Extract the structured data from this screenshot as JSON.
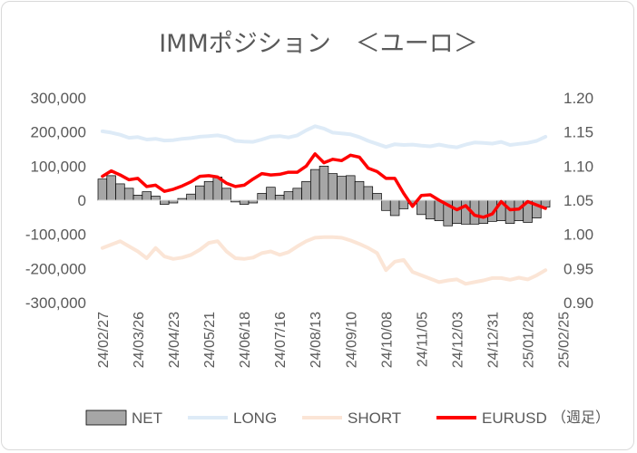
{
  "chart_data": {
    "type": "bar+line",
    "title": "IMMポジション　＜ユーロ＞",
    "x_tick_labels": [
      "24/02/27",
      "24/03/26",
      "24/04/23",
      "24/05/21",
      "24/06/18",
      "24/07/16",
      "24/08/13",
      "24/09/10",
      "24/10/08",
      "24/11/05",
      "24/12/03",
      "24/12/31",
      "25/01/28",
      "25/02/25"
    ],
    "x_note": "（週足）",
    "left_axis": {
      "ylim": [
        -300000,
        300000
      ],
      "ticks": [
        300000,
        200000,
        100000,
        0,
        -100000,
        -200000,
        -300000
      ],
      "tick_labels": [
        "300,000",
        "200,000",
        "100,000",
        "0",
        "-100,000",
        "-200,000",
        "-300,000"
      ]
    },
    "right_axis": {
      "ylim": [
        0.9,
        1.2
      ],
      "ticks": [
        1.2,
        1.15,
        1.1,
        1.05,
        1.0,
        0.95,
        0.9
      ],
      "tick_labels": [
        "1.20",
        "1.15",
        "1.10",
        "1.05",
        "1.00",
        "0.95",
        "0.90"
      ]
    },
    "legend_position": "bottom",
    "series": [
      {
        "name": "NET",
        "type": "bar",
        "axis": "left",
        "color": "#a6a6a6",
        "values": [
          62000,
          72000,
          48000,
          35000,
          15000,
          25000,
          12000,
          -12000,
          -8000,
          5000,
          18000,
          42000,
          55000,
          68000,
          35000,
          -5000,
          -12000,
          -8000,
          20000,
          38000,
          15000,
          25000,
          35000,
          55000,
          90000,
          100000,
          78000,
          70000,
          72000,
          55000,
          40000,
          20000,
          -30000,
          -45000,
          -25000,
          -10000,
          -42000,
          -55000,
          -60000,
          -75000,
          -68000,
          -70000,
          -70000,
          -68000,
          -62000,
          -60000,
          -68000,
          -60000,
          -65000,
          -52000,
          -20000
        ]
      },
      {
        "name": "LONG",
        "type": "line",
        "axis": "left",
        "color": "#deebf7",
        "values": [
          202000,
          198000,
          192000,
          183000,
          185000,
          178000,
          180000,
          175000,
          176000,
          180000,
          182000,
          186000,
          188000,
          190000,
          185000,
          174000,
          172000,
          171000,
          178000,
          186000,
          188000,
          184000,
          190000,
          205000,
          217000,
          210000,
          198000,
          196000,
          193000,
          185000,
          174000,
          165000,
          156000,
          164000,
          162000,
          163000,
          160000,
          158000,
          163000,
          158000,
          155000,
          163000,
          169000,
          168000,
          166000,
          171000,
          162000,
          165000,
          168000,
          174000,
          186000
        ]
      },
      {
        "name": "SHORT",
        "type": "line",
        "axis": "left",
        "color": "#fbe5d6",
        "values": [
          -140000,
          -130000,
          -120000,
          -135000,
          -150000,
          -170000,
          -140000,
          -165000,
          -172000,
          -168000,
          -160000,
          -145000,
          -125000,
          -120000,
          -150000,
          -170000,
          -172000,
          -168000,
          -155000,
          -150000,
          -160000,
          -152000,
          -135000,
          -120000,
          -110000,
          -108000,
          -108000,
          -110000,
          -118000,
          -128000,
          -140000,
          -155000,
          -205000,
          -180000,
          -175000,
          -210000,
          -220000,
          -230000,
          -240000,
          -235000,
          -232000,
          -245000,
          -240000,
          -235000,
          -228000,
          -228000,
          -233000,
          -227000,
          -232000,
          -220000,
          -205000
        ]
      },
      {
        "name": "EURUSD",
        "type": "line",
        "axis": "right",
        "color": "#ff0000",
        "values": [
          1.085,
          1.093,
          1.087,
          1.08,
          1.082,
          1.07,
          1.072,
          1.063,
          1.066,
          1.071,
          1.077,
          1.085,
          1.086,
          1.084,
          1.075,
          1.07,
          1.072,
          1.081,
          1.089,
          1.087,
          1.088,
          1.091,
          1.091,
          1.1,
          1.118,
          1.105,
          1.11,
          1.108,
          1.116,
          1.113,
          1.097,
          1.092,
          1.082,
          1.082,
          1.06,
          1.041,
          1.057,
          1.058,
          1.05,
          1.043,
          1.036,
          1.042,
          1.028,
          1.025,
          1.03,
          1.048,
          1.036,
          1.037,
          1.048,
          1.043,
          1.038
        ]
      }
    ]
  }
}
